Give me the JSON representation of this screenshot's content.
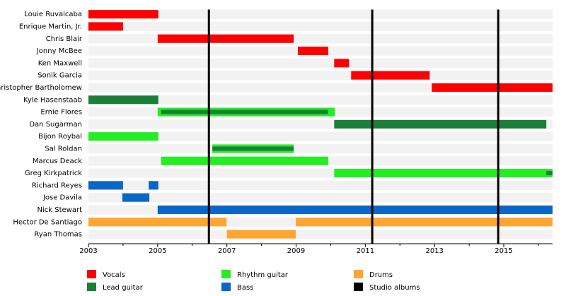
{
  "chart_data": {
    "type": "timeline",
    "xlim": [
      2003,
      2016.41
    ],
    "xticks": [
      2003,
      2005,
      2007,
      2009,
      2011,
      2013,
      2015
    ],
    "xminorticks": [
      2004,
      2006,
      2008,
      2010,
      2012,
      2014,
      2016
    ],
    "roles": [
      {
        "name": "Vocals",
        "color": "#ff0000"
      },
      {
        "name": "Lead guitar",
        "color": "#1b7f3a"
      },
      {
        "name": "Rhythm guitar",
        "color": "#22ee22"
      },
      {
        "name": "Bass",
        "color": "#0a66c8"
      },
      {
        "name": "Drums",
        "color": "#ffa530"
      }
    ],
    "albums": {
      "name": "Studio albums",
      "color": "#000000",
      "x": [
        2006.48,
        2011.2,
        2014.84
      ]
    },
    "rows": [
      {
        "name": "Louie Ruvalcaba",
        "segments": [
          {
            "role": "Vocals",
            "start": 2003,
            "end": 2005.02
          }
        ]
      },
      {
        "name": "Enrique Martin, Jr.",
        "segments": [
          {
            "role": "Vocals",
            "start": 2003,
            "end": 2004.0
          }
        ]
      },
      {
        "name": "Chris Blair",
        "segments": [
          {
            "role": "Vocals",
            "start": 2005.0,
            "end": 2008.93
          }
        ]
      },
      {
        "name": "Jonny McBee",
        "segments": [
          {
            "role": "Vocals",
            "start": 2009.05,
            "end": 2009.93
          }
        ]
      },
      {
        "name": "Ken Maxwell",
        "segments": [
          {
            "role": "Vocals",
            "start": 2010.1,
            "end": 2010.53
          }
        ]
      },
      {
        "name": "Sonik Garcia",
        "segments": [
          {
            "role": "Vocals",
            "start": 2010.59,
            "end": 2012.86
          }
        ]
      },
      {
        "name": "Christopher Bartholomew",
        "segments": [
          {
            "role": "Vocals",
            "start": 2012.92,
            "end": 2016.41
          }
        ]
      },
      {
        "name": "Kyle Hasenstaab",
        "segments": [
          {
            "role": "Lead guitar",
            "start": 2003,
            "end": 2005.02
          }
        ]
      },
      {
        "name": "Ernie Flores",
        "segments": [
          {
            "role": "Rhythm guitar",
            "start": 2005.0,
            "end": 2010.12
          },
          {
            "role": "Lead guitar",
            "start": 2005.1,
            "end": 2009.92
          }
        ]
      },
      {
        "name": "Dan Sugarman",
        "segments": [
          {
            "role": "Lead guitar",
            "start": 2010.1,
            "end": 2016.23
          }
        ]
      },
      {
        "name": "Bijon Roybal",
        "segments": [
          {
            "role": "Rhythm guitar",
            "start": 2003,
            "end": 2005.02
          }
        ]
      },
      {
        "name": "Sal Roldan",
        "segments": [
          {
            "role": "Rhythm guitar",
            "start": 2006.58,
            "end": 2008.93
          },
          {
            "role": "Lead guitar",
            "start": 2006.58,
            "end": 2008.93
          }
        ]
      },
      {
        "name": "Marcus Deack",
        "segments": [
          {
            "role": "Rhythm guitar",
            "start": 2005.1,
            "end": 2009.93
          }
        ]
      },
      {
        "name": "Greg Kirkpatrick",
        "segments": [
          {
            "role": "Rhythm guitar",
            "start": 2010.1,
            "end": 2016.41
          },
          {
            "role": "Lead guitar",
            "start": 2016.23,
            "end": 2016.41
          }
        ]
      },
      {
        "name": "Richard Reyes",
        "segments": [
          {
            "role": "Bass",
            "start": 2003,
            "end": 2004.0
          },
          {
            "role": "Bass",
            "start": 2004.74,
            "end": 2005.02
          }
        ]
      },
      {
        "name": "Jose Davila",
        "segments": [
          {
            "role": "Bass",
            "start": 2003.98,
            "end": 2004.76
          }
        ]
      },
      {
        "name": "Nick Stewart",
        "segments": [
          {
            "role": "Bass",
            "start": 2005.0,
            "end": 2016.41
          }
        ]
      },
      {
        "name": "Hector De Santiago",
        "segments": [
          {
            "role": "Drums",
            "start": 2003,
            "end": 2006.99
          },
          {
            "role": "Drums",
            "start": 2008.99,
            "end": 2016.41
          }
        ]
      },
      {
        "name": "Ryan Thomas",
        "segments": [
          {
            "role": "Drums",
            "start": 2007.0,
            "end": 2008.99
          }
        ]
      }
    ]
  }
}
